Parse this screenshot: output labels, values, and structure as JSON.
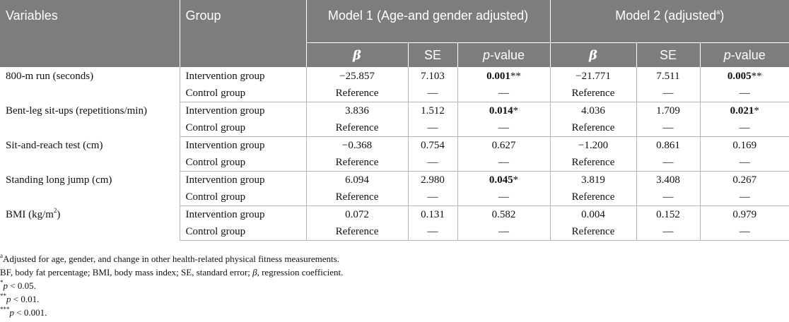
{
  "header": {
    "variables": "Variables",
    "group": "Group",
    "model1": "Model 1 (Age-and gender adjusted)",
    "model2_prefix": "Model 2 (adjusted",
    "model2_sup": "a",
    "model2_suffix": ")",
    "beta": "β",
    "se": "SE",
    "p": "p",
    "p_suffix": "-value"
  },
  "rows": [
    {
      "variable": "800-m run (seconds)",
      "variable_sup": "",
      "intervention": {
        "group": "Intervention group",
        "m1_beta": "−25.857",
        "m1_se": "7.103",
        "m1_p": "0.001",
        "m1_p_star": "**",
        "m2_beta": "−21.771",
        "m2_se": "7.511",
        "m2_p": "0.005",
        "m2_p_star": "**"
      },
      "control": {
        "group": "Control group",
        "m1_beta": "Reference",
        "m1_se": "—",
        "m1_p": "—",
        "m2_beta": "Reference",
        "m2_se": "—",
        "m2_p": "—"
      }
    },
    {
      "variable": "Bent-leg sit-ups (repetitions/min)",
      "variable_sup": "",
      "intervention": {
        "group": "Intervention group",
        "m1_beta": "3.836",
        "m1_se": "1.512",
        "m1_p": "0.014",
        "m1_p_star": "*",
        "m2_beta": "4.036",
        "m2_se": "1.709",
        "m2_p": "0.021",
        "m2_p_star": "*"
      },
      "control": {
        "group": "Control group",
        "m1_beta": "Reference",
        "m1_se": "—",
        "m1_p": "—",
        "m2_beta": "Reference",
        "m2_se": "—",
        "m2_p": "—"
      }
    },
    {
      "variable": "Sit-and-reach test (cm)",
      "variable_sup": "",
      "intervention": {
        "group": "Intervention group",
        "m1_beta": "−0.368",
        "m1_se": "0.754",
        "m1_p": "0.627",
        "m1_p_star": "",
        "m2_beta": "−1.200",
        "m2_se": "0.861",
        "m2_p": "0.169",
        "m2_p_star": ""
      },
      "control": {
        "group": "Control group",
        "m1_beta": "Reference",
        "m1_se": "—",
        "m1_p": "—",
        "m2_beta": "Reference",
        "m2_se": "—",
        "m2_p": "—"
      }
    },
    {
      "variable": "Standing long jump (cm)",
      "variable_sup": "",
      "intervention": {
        "group": "Intervention group",
        "m1_beta": "6.094",
        "m1_se": "2.980",
        "m1_p": "0.045",
        "m1_p_star": "*",
        "m2_beta": "3.819",
        "m2_se": "3.408",
        "m2_p": "0.267",
        "m2_p_star": ""
      },
      "control": {
        "group": "Control group",
        "m1_beta": "Reference",
        "m1_se": "—",
        "m1_p": "—",
        "m2_beta": "Reference",
        "m2_se": "—",
        "m2_p": "—"
      }
    },
    {
      "variable": "BMI (kg/m",
      "variable_sup": "2",
      "variable_suffix": ")",
      "intervention": {
        "group": "Intervention group",
        "m1_beta": "0.072",
        "m1_se": "0.131",
        "m1_p": "0.582",
        "m1_p_star": "",
        "m2_beta": "0.004",
        "m2_se": "0.152",
        "m2_p": "0.979",
        "m2_p_star": ""
      },
      "control": {
        "group": "Control group",
        "m1_beta": "Reference",
        "m1_se": "—",
        "m1_p": "—",
        "m2_beta": "Reference",
        "m2_se": "—",
        "m2_p": "—"
      }
    }
  ],
  "notes": {
    "n1_sup": "a",
    "n1": "Adjusted for age, gender, and change in other health-related physical fitness measurements.",
    "n2_a": "BF, body fat percentage; BMI, body mass index; SE, standard error; ",
    "n2_beta": "β",
    "n2_b": ", regression coefficient.",
    "n3_star": "*",
    "n3_p": "p",
    "n3_rest": " < 0.05.",
    "n4_star": "**",
    "n4_p": "p",
    "n4_rest": " < 0.01.",
    "n5_star": "***",
    "n5_p": "p",
    "n5_rest": " < 0.001."
  }
}
